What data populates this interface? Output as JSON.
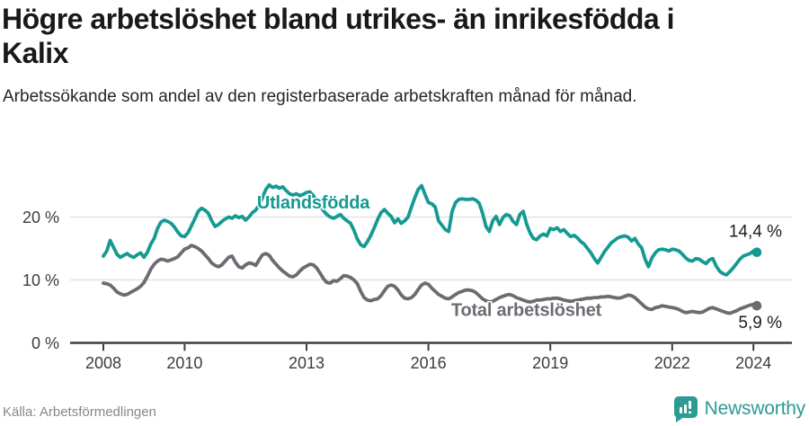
{
  "footer": {
    "source": "Källa: Arbetsförmedlingen",
    "brand": "Newsworthy"
  },
  "colors": {
    "teal": "#149a92",
    "gray": "#6b6b72",
    "axis": "#3d3d3d",
    "grid": "#e2e2e2",
    "value_label": "#1d1d1d",
    "source_gray": "#878787",
    "brand_teal": "#2b9b94",
    "background": "#ffffff"
  },
  "chart_data": {
    "type": "line",
    "title": "Högre arbetslöshet bland utrikes- än inrikesfödda i Kalix",
    "subtitle": "Arbetssökande som andel av den registerbaserade arbetskraften månad för månad.",
    "x_start_year": 2008,
    "points_per_year": 12,
    "x_ticks": [
      2008,
      2010,
      2013,
      2016,
      2019,
      2022,
      2024
    ],
    "y_ticks": [
      0,
      10,
      20
    ],
    "y_tick_suffix": " %",
    "ylim": [
      0,
      26.5
    ],
    "xlim": [
      2007.2,
      2024.9
    ],
    "grid": "horizontal",
    "legend_position": "inline-labels",
    "series": [
      {
        "name": "Utlandsfödda",
        "color": "#149a92",
        "end_label": "14,4 %",
        "label_at": {
          "year": 2011.78,
          "value": 21.35
        },
        "values": [
          13.8,
          14.6,
          16.3,
          15.2,
          14.1,
          13.6,
          13.9,
          14.2,
          13.8,
          13.6,
          14.0,
          14.3,
          13.6,
          14.4,
          15.7,
          16.6,
          18.2,
          19.2,
          19.5,
          19.3,
          19.0,
          18.4,
          17.6,
          17.0,
          16.9,
          17.5,
          18.6,
          19.7,
          20.9,
          21.4,
          21.1,
          20.6,
          19.4,
          18.5,
          18.8,
          19.3,
          19.7,
          20.0,
          19.8,
          20.2,
          19.9,
          20.1,
          19.5,
          20.0,
          20.7,
          21.1,
          21.9,
          23.1,
          24.4,
          25.1,
          24.7,
          24.9,
          24.6,
          24.8,
          24.2,
          23.7,
          23.5,
          23.7,
          23.4,
          23.6,
          23.9,
          24.0,
          23.4,
          22.6,
          21.8,
          21.0,
          20.4,
          20.0,
          19.8,
          20.1,
          20.4,
          19.8,
          19.4,
          19.0,
          17.9,
          16.5,
          15.6,
          15.3,
          16.1,
          17.1,
          18.3,
          19.6,
          20.7,
          21.2,
          20.6,
          20.1,
          19.1,
          19.7,
          19.0,
          19.4,
          20.0,
          21.6,
          23.1,
          24.4,
          25.0,
          23.6,
          22.3,
          22.1,
          21.6,
          19.4,
          18.7,
          18.0,
          17.7,
          20.9,
          22.3,
          22.8,
          22.9,
          22.8,
          22.8,
          22.9,
          22.7,
          22.2,
          20.6,
          18.5,
          17.7,
          19.4,
          20.1,
          18.8,
          19.9,
          20.4,
          20.2,
          19.3,
          18.8,
          20.4,
          20.9,
          18.9,
          17.5,
          16.6,
          16.4,
          17.0,
          17.3,
          17.0,
          18.2,
          18.0,
          18.3,
          17.7,
          18.0,
          17.4,
          16.9,
          17.1,
          16.7,
          16.1,
          15.7,
          15.0,
          14.3,
          13.4,
          12.7,
          13.6,
          14.5,
          15.2,
          15.9,
          16.3,
          16.7,
          16.9,
          17.0,
          16.8,
          16.2,
          16.6,
          15.7,
          15.1,
          13.3,
          12.1,
          13.5,
          14.3,
          14.8,
          14.9,
          14.8,
          14.6,
          14.9,
          14.8,
          14.6,
          14.1,
          13.5,
          13.1,
          13.0,
          13.4,
          13.3,
          12.9,
          12.6,
          13.2,
          13.4,
          12.2,
          11.4,
          11.0,
          10.8,
          11.3,
          11.9,
          12.6,
          13.3,
          13.8,
          14.0,
          14.2,
          14.6,
          14.4
        ]
      },
      {
        "name": "Total arbetslöshet",
        "color": "#6b6b72",
        "end_label": "5,9 %",
        "label_at": {
          "year": 2016.56,
          "value": 4.3
        },
        "values": [
          9.5,
          9.4,
          9.2,
          8.7,
          8.1,
          7.8,
          7.6,
          7.7,
          8.0,
          8.3,
          8.6,
          9.0,
          9.6,
          10.6,
          11.7,
          12.5,
          13.0,
          13.3,
          13.2,
          13.0,
          13.2,
          13.4,
          13.7,
          14.3,
          14.9,
          15.1,
          15.5,
          15.3,
          15.0,
          14.6,
          14.0,
          13.4,
          12.7,
          12.3,
          12.1,
          12.4,
          13.0,
          13.6,
          13.8,
          12.8,
          12.1,
          11.9,
          12.4,
          12.7,
          12.6,
          12.3,
          13.2,
          14.0,
          14.2,
          13.9,
          13.1,
          12.5,
          11.9,
          11.4,
          11.0,
          10.6,
          10.5,
          10.8,
          11.4,
          11.9,
          12.2,
          12.5,
          12.4,
          11.9,
          11.1,
          10.2,
          9.6,
          9.5,
          9.9,
          9.8,
          10.2,
          10.7,
          10.6,
          10.4,
          10.0,
          9.4,
          8.2,
          7.2,
          6.8,
          6.7,
          6.9,
          7.0,
          7.5,
          8.3,
          9.0,
          9.2,
          9.0,
          8.4,
          7.6,
          7.1,
          7.0,
          7.2,
          7.7,
          8.5,
          9.2,
          9.5,
          9.3,
          8.7,
          8.2,
          7.7,
          7.4,
          7.1,
          7.0,
          7.3,
          7.7,
          8.0,
          8.2,
          8.4,
          8.4,
          8.3,
          8.0,
          7.5,
          7.0,
          6.7,
          6.5,
          6.6,
          6.9,
          7.2,
          7.4,
          7.6,
          7.7,
          7.5,
          7.2,
          7.0,
          6.8,
          6.6,
          6.5,
          6.6,
          6.8,
          6.8,
          6.9,
          7.0,
          7.0,
          7.1,
          7.1,
          7.0,
          6.8,
          6.7,
          6.6,
          6.7,
          6.8,
          6.9,
          7.0,
          7.1,
          7.1,
          7.2,
          7.2,
          7.3,
          7.3,
          7.4,
          7.3,
          7.2,
          7.1,
          7.2,
          7.4,
          7.6,
          7.5,
          7.2,
          6.7,
          6.2,
          5.7,
          5.4,
          5.3,
          5.6,
          5.7,
          5.9,
          5.8,
          5.7,
          5.6,
          5.5,
          5.3,
          5.0,
          4.8,
          4.9,
          5.0,
          4.9,
          4.8,
          4.9,
          5.2,
          5.5,
          5.6,
          5.4,
          5.2,
          5.0,
          4.8,
          4.7,
          4.9,
          5.1,
          5.4,
          5.6,
          5.8,
          6.0,
          6.1,
          5.9
        ]
      }
    ]
  }
}
